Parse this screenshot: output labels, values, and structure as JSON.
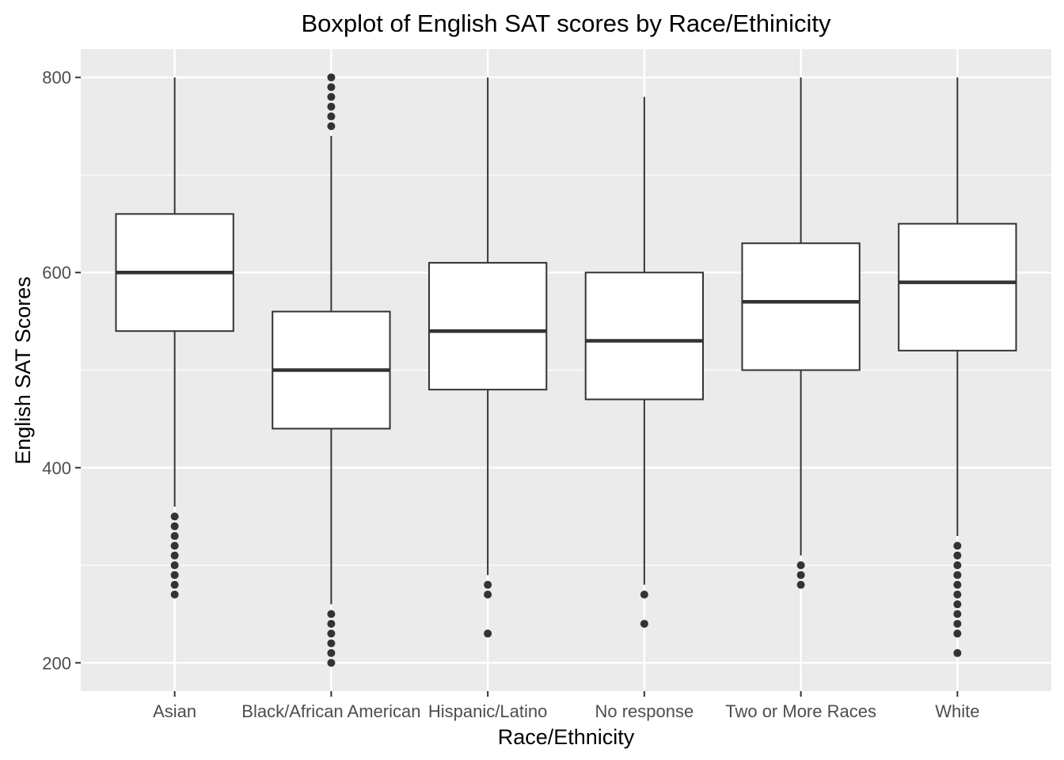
{
  "chart_data": {
    "type": "boxplot",
    "title": "Boxplot of English SAT scores by Race/Ethinicity",
    "xlabel": "Race/Ethnicity",
    "ylabel": "English SAT Scores",
    "categories": [
      "Asian",
      "Black/African American",
      "Hispanic/Latino",
      "No response",
      "Two or More Races",
      "White"
    ],
    "y_ticks": [
      200,
      400,
      600,
      800
    ],
    "ylim": [
      171,
      829
    ],
    "grid": true,
    "legend": "none",
    "boxes": [
      {
        "category": "Asian",
        "whisker_low": 360,
        "q1": 540,
        "median": 600,
        "q3": 660,
        "whisker_high": 800,
        "outliers": [
          270,
          280,
          290,
          300,
          310,
          320,
          330,
          340,
          350
        ]
      },
      {
        "category": "Black/African American",
        "whisker_low": 260,
        "q1": 440,
        "median": 500,
        "q3": 560,
        "whisker_high": 740,
        "outliers": [
          200,
          210,
          220,
          230,
          240,
          250,
          750,
          760,
          770,
          780,
          790,
          800
        ]
      },
      {
        "category": "Hispanic/Latino",
        "whisker_low": 290,
        "q1": 480,
        "median": 540,
        "q3": 610,
        "whisker_high": 800,
        "outliers": [
          230,
          270,
          280
        ]
      },
      {
        "category": "No response",
        "whisker_low": 280,
        "q1": 470,
        "median": 530,
        "q3": 600,
        "whisker_high": 780,
        "outliers": [
          240,
          270
        ]
      },
      {
        "category": "Two or More Races",
        "whisker_low": 310,
        "q1": 500,
        "median": 570,
        "q3": 630,
        "whisker_high": 800,
        "outliers": [
          280,
          290,
          300
        ]
      },
      {
        "category": "White",
        "whisker_low": 330,
        "q1": 520,
        "median": 590,
        "q3": 650,
        "whisker_high": 800,
        "outliers": [
          210,
          230,
          240,
          250,
          260,
          270,
          280,
          290,
          300,
          310,
          320
        ]
      }
    ],
    "colors": {
      "panel": "#ebebeb",
      "grid": "#ffffff",
      "box_fill": "#ffffff",
      "line": "#333333",
      "tick_text": "#4d4d4d"
    }
  }
}
